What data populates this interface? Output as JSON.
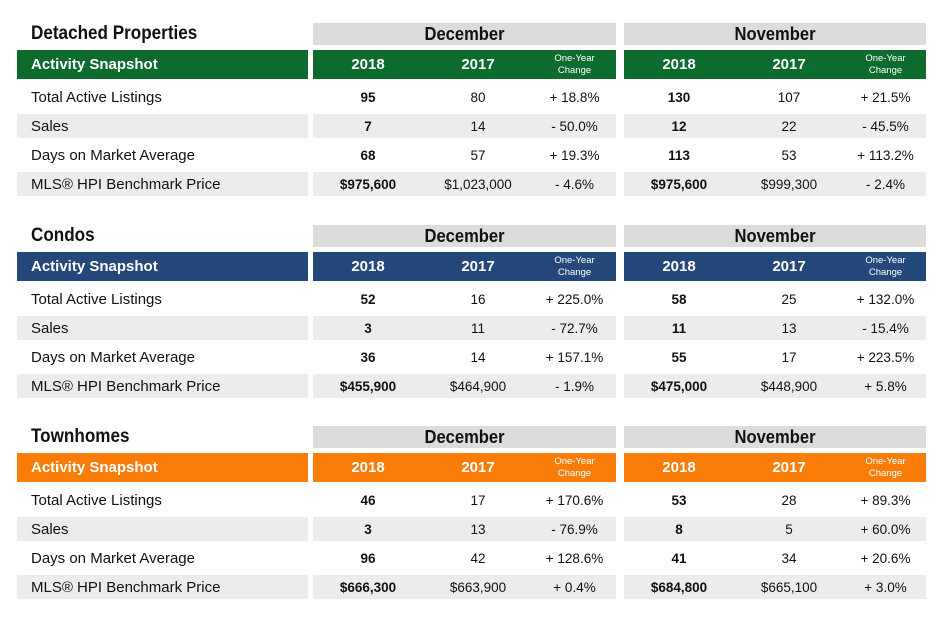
{
  "colors": {
    "detached": "#0e6b2e",
    "condos": "#24487a",
    "townhomes": "#fa7d0a",
    "month_header_bg": "#dcdcdc",
    "row_shade": "#ececec"
  },
  "sections": [
    {
      "title": "Detached Properties",
      "snapshot_label": "Activity Snapshot",
      "months": [
        "December",
        "November"
      ],
      "year_a": "2018",
      "year_b": "2017",
      "change_line1": "One-Year",
      "change_line2": "Change",
      "rows": [
        {
          "label": "Total Active Listings",
          "dec": [
            "95",
            "80",
            "+ 18.8%"
          ],
          "nov": [
            "130",
            "107",
            "+ 21.5%"
          ]
        },
        {
          "label": "Sales",
          "dec": [
            "7",
            "14",
            "- 50.0%"
          ],
          "nov": [
            "12",
            "22",
            "- 45.5%"
          ]
        },
        {
          "label": "Days on Market Average",
          "dec": [
            "68",
            "57",
            "+ 19.3%"
          ],
          "nov": [
            "113",
            "53",
            "+ 113.2%"
          ]
        },
        {
          "label": "MLS® HPI Benchmark Price",
          "dec": [
            "$975,600",
            "$1,023,000",
            "- 4.6%"
          ],
          "nov": [
            "$975,600",
            "$999,300",
            "- 2.4%"
          ]
        }
      ]
    },
    {
      "title": "Condos",
      "snapshot_label": "Activity Snapshot",
      "months": [
        "December",
        "November"
      ],
      "year_a": "2018",
      "year_b": "2017",
      "change_line1": "One-Year",
      "change_line2": "Change",
      "rows": [
        {
          "label": "Total Active Listings",
          "dec": [
            "52",
            "16",
            "+ 225.0%"
          ],
          "nov": [
            "58",
            "25",
            "+ 132.0%"
          ]
        },
        {
          "label": "Sales",
          "dec": [
            "3",
            "11",
            "- 72.7%"
          ],
          "nov": [
            "11",
            "13",
            "- 15.4%"
          ]
        },
        {
          "label": "Days on Market Average",
          "dec": [
            "36",
            "14",
            "+ 157.1%"
          ],
          "nov": [
            "55",
            "17",
            "+ 223.5%"
          ]
        },
        {
          "label": "MLS® HPI Benchmark Price",
          "dec": [
            "$455,900",
            "$464,900",
            "- 1.9%"
          ],
          "nov": [
            "$475,000",
            "$448,900",
            "+ 5.8%"
          ]
        }
      ]
    },
    {
      "title": "Townhomes",
      "snapshot_label": "Activity Snapshot",
      "months": [
        "December",
        "November"
      ],
      "year_a": "2018",
      "year_b": "2017",
      "change_line1": "One-Year",
      "change_line2": "Change",
      "rows": [
        {
          "label": "Total Active Listings",
          "dec": [
            "46",
            "17",
            "+ 170.6%"
          ],
          "nov": [
            "53",
            "28",
            "+ 89.3%"
          ]
        },
        {
          "label": "Sales",
          "dec": [
            "3",
            "13",
            "- 76.9%"
          ],
          "nov": [
            "8",
            "5",
            "+ 60.0%"
          ]
        },
        {
          "label": "Days on Market Average",
          "dec": [
            "96",
            "42",
            "+ 128.6%"
          ],
          "nov": [
            "41",
            "34",
            "+ 20.6%"
          ]
        },
        {
          "label": "MLS® HPI Benchmark Price",
          "dec": [
            "$666,300",
            "$663,900",
            "+ 0.4%"
          ],
          "nov": [
            "$684,800",
            "$665,100",
            "+ 3.0%"
          ]
        }
      ]
    }
  ]
}
